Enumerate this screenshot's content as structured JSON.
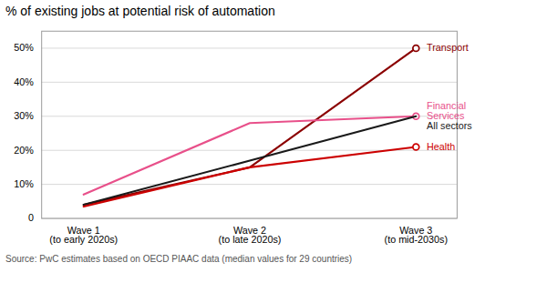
{
  "chart_data": {
    "type": "line",
    "title": "% of existing jobs at potential risk of automation",
    "categories": [
      "Wave 1\n(to early 2020s)",
      "Wave 2\n(to late 2020s)",
      "Wave 3\n(to mid-2030s)"
    ],
    "series": [
      {
        "name": "Transport",
        "color": "#8B0000",
        "values": [
          4,
          15,
          50
        ],
        "marker": "o"
      },
      {
        "name": "Financial\nServices",
        "color": "#e8508a",
        "values": [
          7,
          28,
          30
        ],
        "marker": "o"
      },
      {
        "name": "All sectors",
        "color": "#1a1a1a",
        "values": [
          4,
          17,
          30
        ]
      },
      {
        "name": "Health",
        "color": "#cc0000",
        "values": [
          3.5,
          15,
          21
        ],
        "marker": "o"
      }
    ],
    "ylim": [
      0,
      55
    ],
    "yticks": [
      0,
      {
        "value": 10,
        "label": "10%"
      },
      {
        "value": 20,
        "label": "20%"
      },
      {
        "value": 30,
        "label": "30%"
      },
      {
        "value": 40,
        "label": "40%"
      },
      {
        "value": 50,
        "label": "50%"
      }
    ],
    "grid": true,
    "source": "Source: PwC estimates based on OECD PIAAC data (median values for 29 countries)"
  }
}
